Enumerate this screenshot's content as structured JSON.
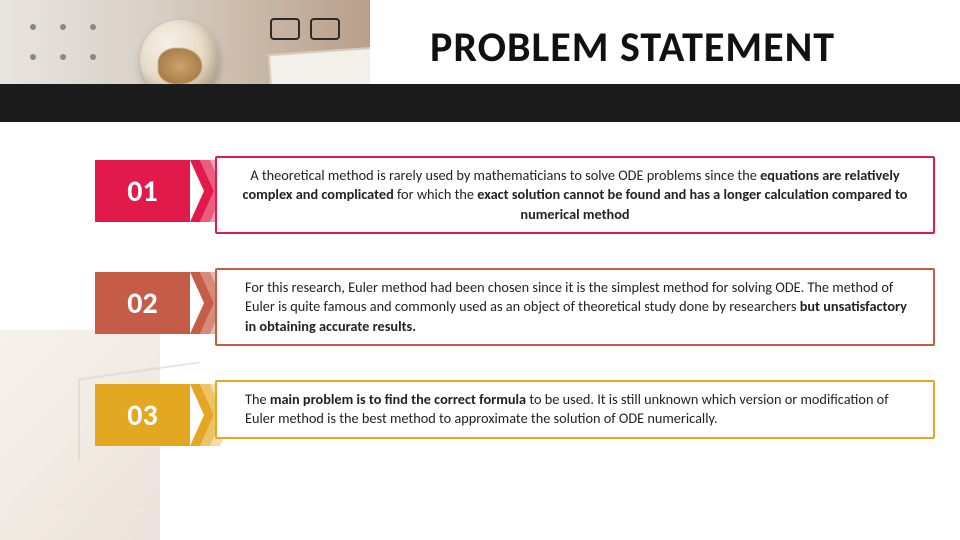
{
  "title": "PROBLEM STATEMENT",
  "title_color": "#111111",
  "title_fontsize": 42,
  "header_bar_color": "#1b1b1b",
  "background_color": "#ffffff",
  "items": [
    {
      "number": "01",
      "number_bg": "#e2194b",
      "chevron_colors": [
        "#e2194b",
        "#ec5c7f",
        "#f39fb2"
      ],
      "border_color": "#e2194b",
      "text_align": "center",
      "text_html": "A theoretical method is rarely used by mathematicians to solve ODE problems since the <b>equations are relatively complex and complicated</b> for which the <b>exact solution cannot be found and has a longer calculation compared to numerical method</b>"
    },
    {
      "number": "02",
      "number_bg": "#c45c48",
      "chevron_colors": [
        "#c45c48",
        "#d68a77",
        "#e7b8ab"
      ],
      "border_color": "#c45c48",
      "text_align": "left",
      "text_html": "For this research, Euler method had been chosen since it is the simplest method for solving ODE. The method of Euler is quite famous and commonly used as an object of theoretical study  done by researchers <b>but unsatisfactory in obtaining accurate results.</b>"
    },
    {
      "number": "03",
      "number_bg": "#e4a722",
      "chevron_colors": [
        "#e4a722",
        "#edc366",
        "#f5dea9"
      ],
      "border_color": "#e4a722",
      "text_align": "left",
      "text_html": " The <b>main problem is to find the correct formula</b> to be used. It is still unknown which version or modification of Euler method is the best method to approximate the solution of ODE numerically."
    }
  ]
}
